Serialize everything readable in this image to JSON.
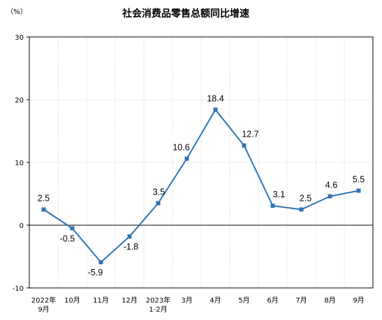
{
  "chart_data": {
    "type": "line",
    "title": "社会消费品零售总额同比增速",
    "ylabel": "（%）",
    "xlabel": "",
    "ylim": [
      -10,
      30
    ],
    "yticks": [
      -10,
      0,
      10,
      20,
      30
    ],
    "grid": true,
    "categories": [
      [
        "2022年",
        "9月"
      ],
      [
        "10月"
      ],
      [
        "11月"
      ],
      [
        "12月"
      ],
      [
        "2023年",
        "1-2月"
      ],
      [
        "3月"
      ],
      [
        "4月"
      ],
      [
        "5月"
      ],
      [
        "6月"
      ],
      [
        "7月"
      ],
      [
        "8月"
      ],
      [
        "9月"
      ]
    ],
    "series": [
      {
        "values": [
          2.5,
          -0.5,
          -5.9,
          -1.8,
          3.5,
          10.6,
          18.4,
          12.7,
          3.1,
          2.5,
          4.6,
          5.5
        ],
        "labels": [
          "2.5",
          "-0.5",
          "-5.9",
          "-1.8",
          "3.5",
          "10.6",
          "18.4",
          "12.7",
          "3.1",
          "2.5",
          "4.6",
          "5.5"
        ],
        "color": "#2e74b5"
      }
    ]
  }
}
